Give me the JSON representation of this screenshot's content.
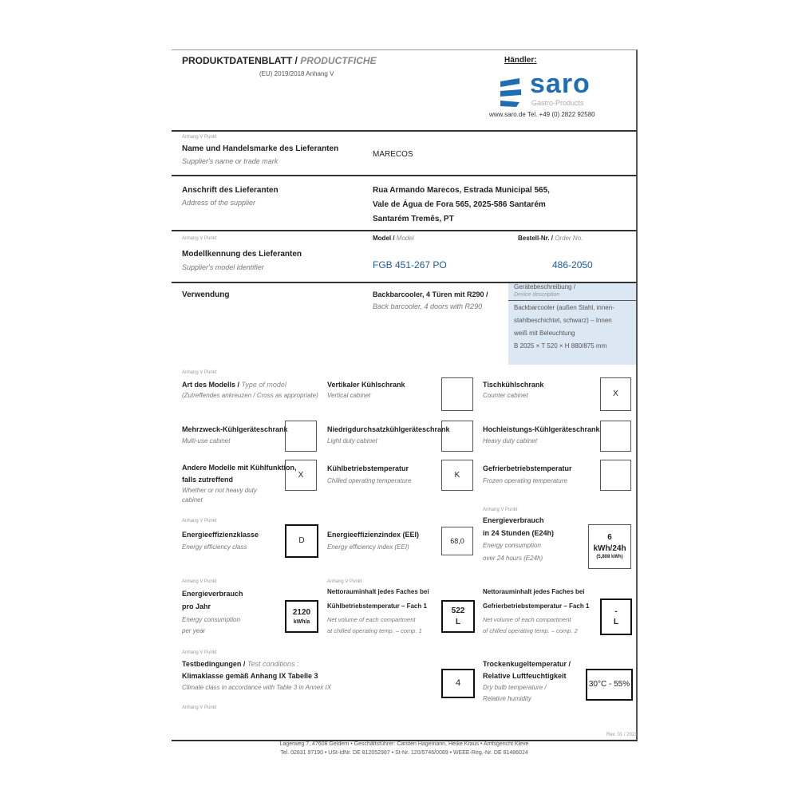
{
  "header": {
    "title_de": "PRODUKTDATENBLATT",
    "title_sep": " / ",
    "title_en": "PRODUCTFICHE",
    "regulation": "(EU) 2019/2018 Anhang V",
    "dealer_label": "Händler:",
    "logo_text": "saro",
    "logo_sub": "Gastro-Products",
    "contact": "www.saro.de  Tel. +49 (0) 2822 92580"
  },
  "supplier": {
    "ref": "Anhang V Punkt",
    "label_de": "Name und Handelsmarke des Lieferanten",
    "label_en": "Supplier's name or trade mark",
    "value": "MARECOS"
  },
  "address": {
    "label_de": "Anschrift des Lieferanten",
    "label_en": "Address of the supplier",
    "lines": [
      "Rua Armando Marecos, Estrada Municipal 565,",
      "Vale de Água de Fora 565, 2025-586 Santarém",
      "Santarém Tremês, PT"
    ]
  },
  "model": {
    "ref": "Anhang V Punkt",
    "label_de": "Modellkennung des Lieferanten",
    "label_en": "Supplier's model identifier",
    "model_label_de": "Model /",
    "model_label_en": "Model",
    "model_value": "FGB 451-267 PO",
    "order_label_de": "Bestell-Nr. /",
    "order_label_en": "Order No.",
    "order_value": "486-2050"
  },
  "usage": {
    "label": "Verwendung",
    "value_de": "Backbarcooler, 4 Türen mit R290 /",
    "value_en": "Back barcooler, 4 doors with R290",
    "info_title_de": "Gerätebeschreibung /",
    "info_title_en": "Device description",
    "info_lines": [
      "Backbarcooler (außen Stahl, innen-",
      "stahlbeschichtet, schwarz) – Innen",
      "weiß mit Beleuchtung",
      "B 2025 × T 520 × H 880/875 mm"
    ]
  },
  "types": {
    "ref": "Anhang V Punkt",
    "label_de": "Art des Modells /",
    "label_en": "Type of model",
    "label_sub": "(Zutreffendes ankreuzen / Cross as appropriate)",
    "items": [
      {
        "de": "Vertikaler Kühlschrank",
        "en": "Vertical cabinet",
        "mark": ""
      },
      {
        "de": "Tischkühlschrank",
        "en": "Counter cabinet",
        "mark": "X"
      },
      {
        "de": "Mehrzweck-Kühlgeräteschrank",
        "en": "Multi-use cabinet",
        "mark": ""
      },
      {
        "de": "Niedrigdurchsatzkühlgeräteschrank",
        "en": "Light duty cabinet",
        "mark": ""
      },
      {
        "de": "Hochleistungs-Kühlgeräteschrank",
        "en": "Heavy duty cabinet",
        "mark": ""
      },
      {
        "de": "Andere Modelle mit Kühlfunktion,",
        "de2": "falls zutreffend",
        "en": "Whether or not heavy duty",
        "en2": "cabinet",
        "mark": "X"
      },
      {
        "de": "Kühlbetriebstemperatur",
        "en": "Chilled operating temperature",
        "mark": "K"
      },
      {
        "de": "Gefrierbetriebstemperatur",
        "en": "Frozen operating temperature",
        "mark": ""
      }
    ]
  },
  "energy": {
    "class_ref": "Anhang V Punkt",
    "class_de": "Energieeffizienzklasse",
    "class_en": "Energy efficiency class",
    "class_value": "D",
    "eei_de": "Energieeffizienzindex (EEI)",
    "eei_en": "Energy efficiency index (EEI)",
    "eei_value": "68,0",
    "day_ref": "Anhang V Punkt",
    "day_de1": "Energieverbrauch",
    "day_de2": "in 24 Stunden (E24h)",
    "day_en1": "Energy consumption",
    "day_en2": "over 24 hours (E24h)",
    "day_value": "6",
    "day_unit": "kWh/24h",
    "day_sub": "(5,808 kWh)",
    "year_ref": "Anhang V Punkt",
    "year_de1": "Energieverbrauch",
    "year_de2": "pro Jahr",
    "year_en1": "Energy consumption",
    "year_en2": "per year",
    "year_value": "2120",
    "year_unit": "kWh/a"
  },
  "volume": {
    "ref": "Anhang V Punkt",
    "c1_de1": "Nettorauminhalt jedes Faches bei",
    "c1_de2": "Kühlbetriebstemperatur – Fach 1",
    "c1_en1": "Net volume of each compartment",
    "c1_en2": "at chilled operating temp. – comp. 1",
    "c1_value": "522",
    "c1_unit": "L",
    "c2_de1": "Nettorauminhalt jedes Faches bei",
    "c2_de2": "Gefrierbetriebstemperatur – Fach 1",
    "c2_en1": "Net volume of each compartment",
    "c2_en2": "of chilled operating temp. – comp. 2",
    "c2_value": "-",
    "c2_unit": "L"
  },
  "test": {
    "ref": "Anhang V Punkt",
    "de_bold": "Testbedingungen /",
    "en_inline": "Test conditions :",
    "climate_de": "Klimaklasse gemäß Anhang IX Tabelle 3",
    "climate_en": "Climate class in accordance with Table 3 in Annex IX",
    "climate_value": "4",
    "temp_de1": "Trockenkugeltemperatur /",
    "temp_de2": "Relative Luftfeuchtigkeit",
    "temp_en1": "Dry bulb temperature /",
    "temp_en2": "Relative humidity",
    "temp_value": "30°C - 55%",
    "ref2": "Anhang V Punkt",
    "page_no": "Rev. 01 / 2021"
  },
  "footer": {
    "line1": "Lagerweg 7, 47608 Geldern • Geschäftsführer: Carsten Hagemann, Heike Kraus • Amtsgericht Kleve",
    "line2": "Tel. 02831 97190 • USt-IdNr. DE 812052987 • St-Nr. 120/5746/0089 • WEEE-Reg.-Nr. DE 81486024"
  },
  "colors": {
    "logo_blue": "#1f6eb4",
    "info_box": "#dbe7f3"
  }
}
